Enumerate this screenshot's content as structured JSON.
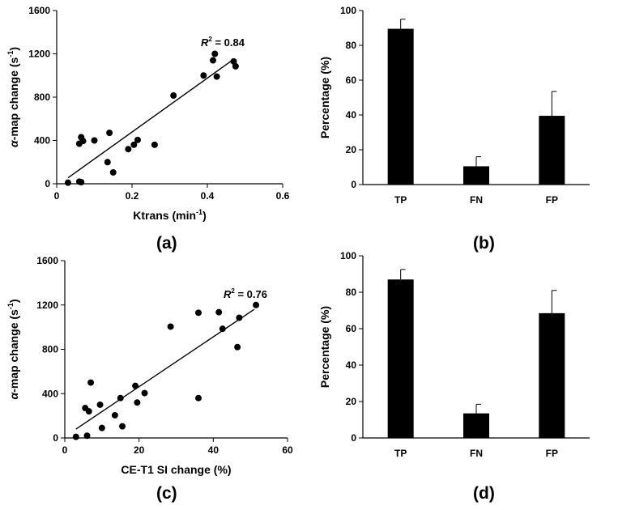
{
  "chart_data": [
    {
      "id": "a",
      "type": "scatter",
      "panel_label": "(a)",
      "xlabel": "Ktrans (min",
      "xlabel_sup": "-1",
      "xlabel_end": ")",
      "ylabel_prefix": "α",
      "ylabel": "-map change (s",
      "ylabel_sup": "-1",
      "ylabel_end": ")",
      "xlim": [
        0,
        0.6
      ],
      "ylim": [
        0,
        1600
      ],
      "xticks": [
        0,
        0.2,
        0.4,
        0.6
      ],
      "xtick_labels": [
        "0",
        "0.2",
        "0.4",
        "0.6"
      ],
      "yticks": [
        0,
        400,
        800,
        1200,
        1600
      ],
      "ytick_labels": [
        "0",
        "400",
        "800",
        "1200",
        "1600"
      ],
      "annotation_r": "R",
      "annotation_sup": "2",
      "annotation_val": " = 0.84",
      "fit": {
        "x": [
          0.03,
          0.47
        ],
        "y": [
          55,
          1150
        ]
      },
      "points": [
        {
          "x": 0.03,
          "y": 10
        },
        {
          "x": 0.06,
          "y": 20
        },
        {
          "x": 0.065,
          "y": 15
        },
        {
          "x": 0.06,
          "y": 370
        },
        {
          "x": 0.065,
          "y": 430
        },
        {
          "x": 0.07,
          "y": 395
        },
        {
          "x": 0.1,
          "y": 400
        },
        {
          "x": 0.135,
          "y": 200
        },
        {
          "x": 0.14,
          "y": 470
        },
        {
          "x": 0.15,
          "y": 105
        },
        {
          "x": 0.19,
          "y": 320
        },
        {
          "x": 0.205,
          "y": 360
        },
        {
          "x": 0.215,
          "y": 405
        },
        {
          "x": 0.26,
          "y": 360
        },
        {
          "x": 0.31,
          "y": 815
        },
        {
          "x": 0.39,
          "y": 1000
        },
        {
          "x": 0.415,
          "y": 1140
        },
        {
          "x": 0.42,
          "y": 1200
        },
        {
          "x": 0.425,
          "y": 990
        },
        {
          "x": 0.47,
          "y": 1130
        },
        {
          "x": 0.475,
          "y": 1085
        }
      ]
    },
    {
      "id": "b",
      "type": "bar",
      "panel_label": "(b)",
      "ylabel": "Percentage (%)",
      "ylim": [
        0,
        100
      ],
      "yticks": [
        0,
        20,
        40,
        60,
        80,
        100
      ],
      "ytick_labels": [
        "0",
        "20",
        "40",
        "60",
        "80",
        "100"
      ],
      "categories": [
        "TP",
        "FN",
        "FP"
      ],
      "values": [
        89.5,
        10.5,
        39.5
      ],
      "errors": [
        5.5,
        5.5,
        14
      ]
    },
    {
      "id": "c",
      "type": "scatter",
      "panel_label": "(c)",
      "xlabel": "CE-T1 SI change (%)",
      "ylabel_prefix": "α",
      "ylabel": "-map change (s",
      "ylabel_sup": "-1",
      "ylabel_end": ")",
      "xlim": [
        0,
        60
      ],
      "ylim": [
        0,
        1600
      ],
      "xticks": [
        0,
        20,
        40,
        60
      ],
      "xtick_labels": [
        "0",
        "20",
        "40",
        "60"
      ],
      "yticks": [
        0,
        400,
        800,
        1200,
        1600
      ],
      "ytick_labels": [
        "0",
        "400",
        "800",
        "1200",
        "1600"
      ],
      "annotation_r": "R",
      "annotation_sup": "2",
      "annotation_val": " = 0.76",
      "fit": {
        "x": [
          3,
          51
        ],
        "y": [
          80,
          1160
        ]
      },
      "points": [
        {
          "x": 3,
          "y": 10
        },
        {
          "x": 5.5,
          "y": 270
        },
        {
          "x": 6,
          "y": 20
        },
        {
          "x": 6.5,
          "y": 240
        },
        {
          "x": 7,
          "y": 500
        },
        {
          "x": 9.5,
          "y": 300
        },
        {
          "x": 10,
          "y": 90
        },
        {
          "x": 13.5,
          "y": 205
        },
        {
          "x": 15,
          "y": 360
        },
        {
          "x": 15.5,
          "y": 105
        },
        {
          "x": 19,
          "y": 470
        },
        {
          "x": 19.5,
          "y": 320
        },
        {
          "x": 21.5,
          "y": 405
        },
        {
          "x": 28.5,
          "y": 1005
        },
        {
          "x": 36,
          "y": 1130
        },
        {
          "x": 36,
          "y": 360
        },
        {
          "x": 41.5,
          "y": 1135
        },
        {
          "x": 42.5,
          "y": 985
        },
        {
          "x": 46.5,
          "y": 820
        },
        {
          "x": 47,
          "y": 1085
        },
        {
          "x": 51.5,
          "y": 1200
        }
      ]
    },
    {
      "id": "d",
      "type": "bar",
      "panel_label": "(d)",
      "ylabel": "Percentage (%)",
      "ylim": [
        0,
        100
      ],
      "yticks": [
        0,
        20,
        40,
        60,
        80,
        100
      ],
      "ytick_labels": [
        "0",
        "20",
        "40",
        "60",
        "80",
        "100"
      ],
      "categories": [
        "TP",
        "FN",
        "FP"
      ],
      "values": [
        87,
        13.5,
        68.5
      ],
      "errors": [
        5.5,
        5,
        12.5
      ]
    }
  ]
}
